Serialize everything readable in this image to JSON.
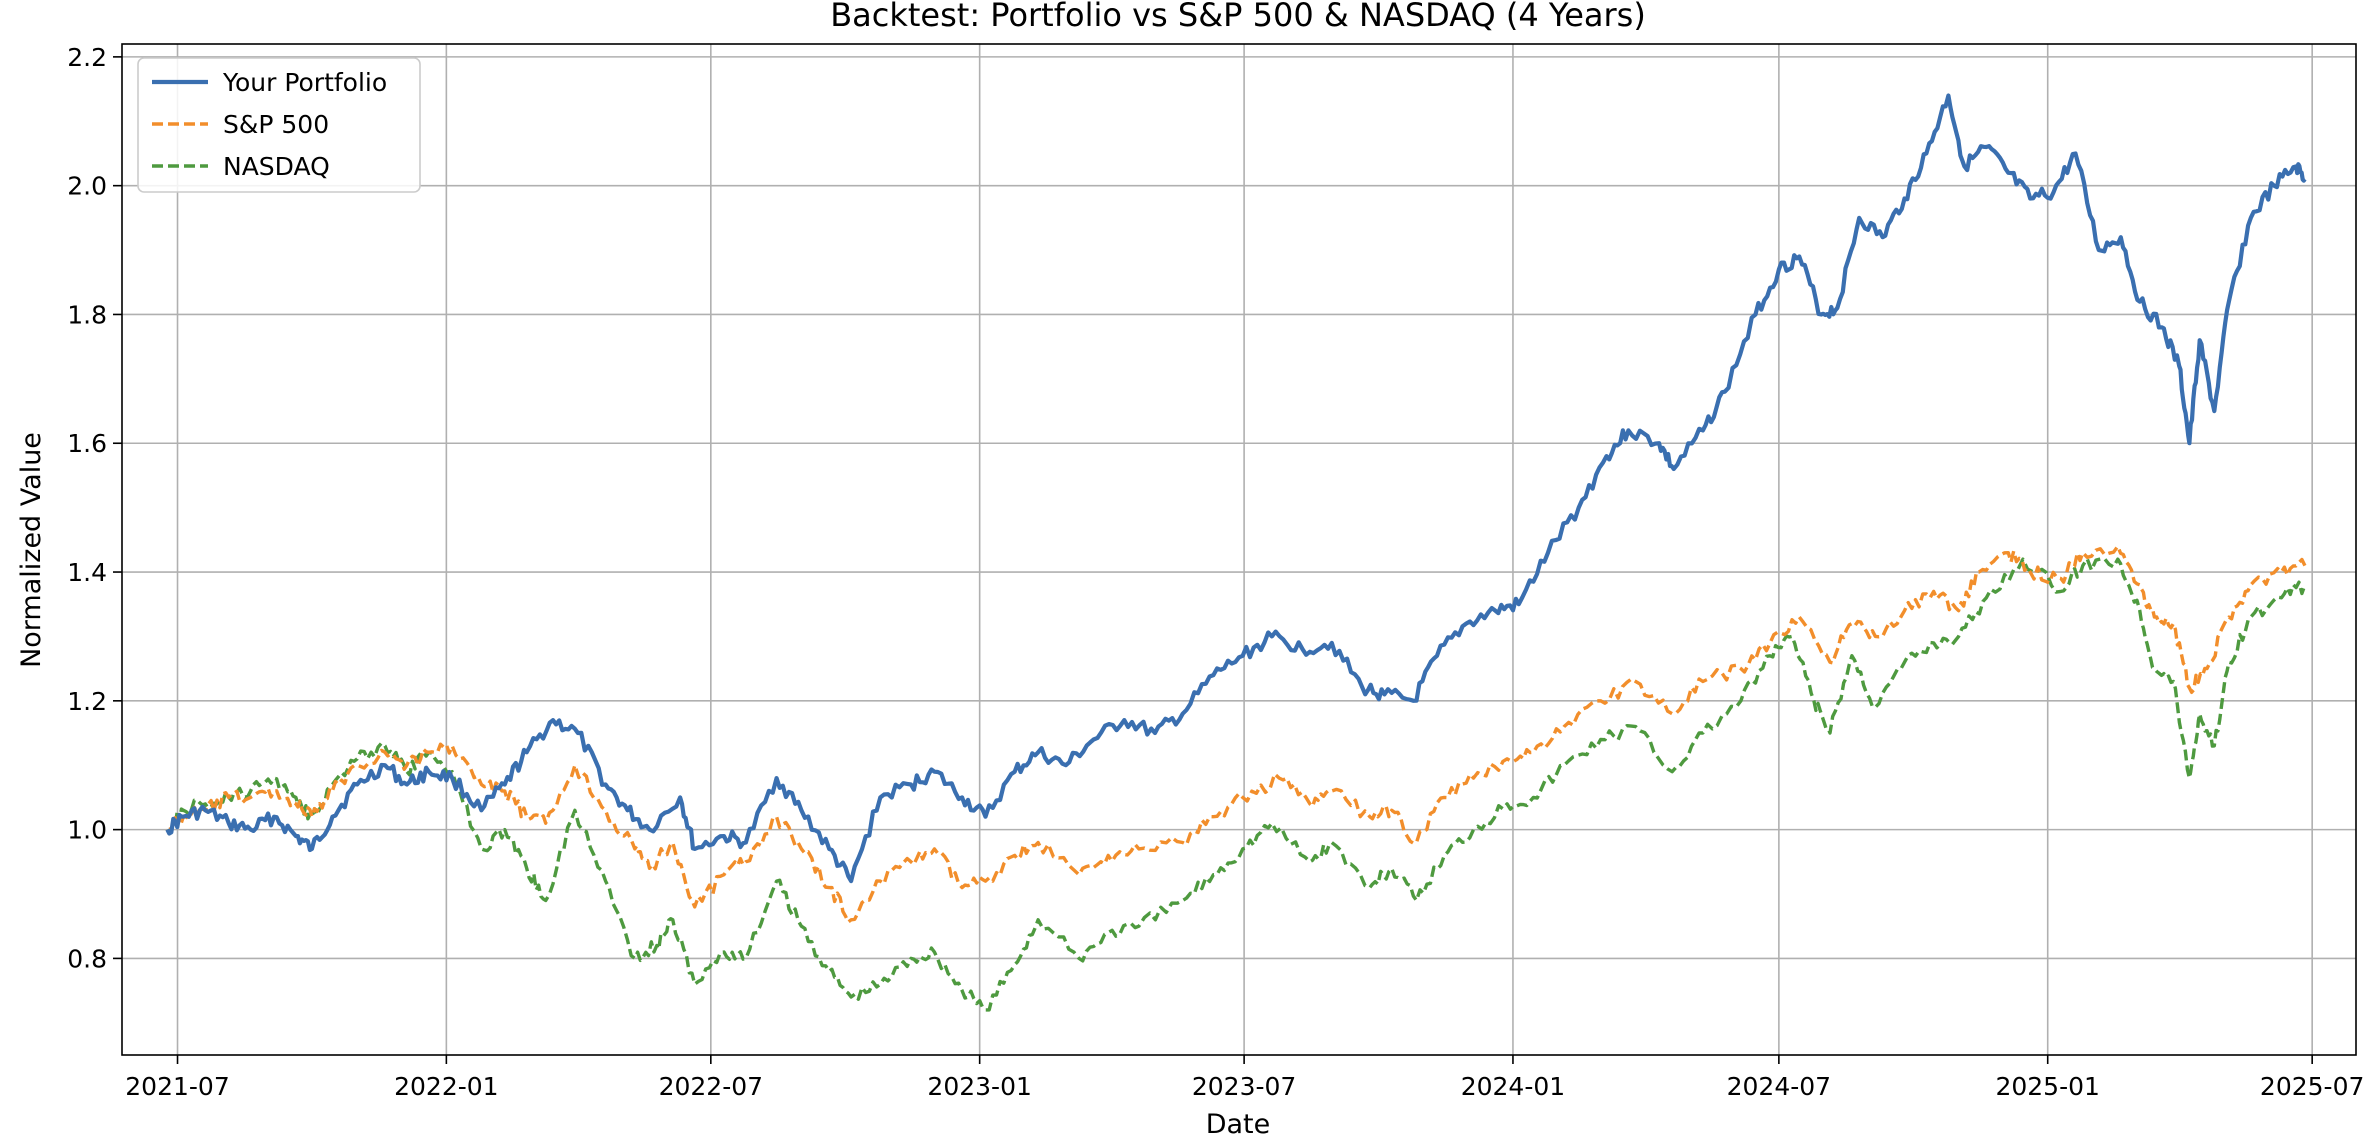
{
  "chart_data": {
    "type": "line",
    "title": "Backtest: Portfolio vs S&P 500 & NASDAQ (4 Years)",
    "xlabel": "Date",
    "ylabel": "Normalized Value",
    "xlim": [
      "2021-05-24",
      "2025-07-31"
    ],
    "ylim": [
      0.65,
      2.22
    ],
    "x_ticks": [
      "2021-07",
      "2022-01",
      "2022-07",
      "2023-01",
      "2023-07",
      "2024-01",
      "2024-07",
      "2025-01",
      "2025-07"
    ],
    "y_ticks": [
      0.8,
      1.0,
      1.2,
      1.4,
      1.6,
      1.8,
      2.0,
      2.2
    ],
    "y_tick_labels": [
      "0.8",
      "1.0",
      "1.2",
      "1.4",
      "1.6",
      "1.8",
      "2.0",
      "2.2"
    ],
    "grid": true,
    "legend_position": "top-left",
    "colors": {
      "portfolio": "#3a6fb0",
      "sp500": "#f28e2b",
      "nasdaq": "#4e9a3f"
    },
    "series": [
      {
        "name": "Your Portfolio",
        "style": "solid",
        "color": "#3a6fb0",
        "points": [
          [
            "2021-06-24",
            1.0
          ],
          [
            "2021-07-05",
            1.02
          ],
          [
            "2021-07-20",
            1.03
          ],
          [
            "2021-08-05",
            1.01
          ],
          [
            "2021-08-20",
            1.0
          ],
          [
            "2021-09-05",
            1.02
          ],
          [
            "2021-09-20",
            0.99
          ],
          [
            "2021-10-01",
            0.97
          ],
          [
            "2021-10-15",
            1.02
          ],
          [
            "2021-11-01",
            1.07
          ],
          [
            "2021-11-20",
            1.1
          ],
          [
            "2021-12-05",
            1.07
          ],
          [
            "2021-12-20",
            1.09
          ],
          [
            "2022-01-05",
            1.08
          ],
          [
            "2022-01-25",
            1.03
          ],
          [
            "2022-02-10",
            1.07
          ],
          [
            "2022-02-25",
            1.12
          ],
          [
            "2022-03-15",
            1.17
          ],
          [
            "2022-04-01",
            1.15
          ],
          [
            "2022-04-20",
            1.07
          ],
          [
            "2022-05-05",
            1.03
          ],
          [
            "2022-05-20",
            1.0
          ],
          [
            "2022-06-10",
            1.05
          ],
          [
            "2022-06-20",
            0.97
          ],
          [
            "2022-07-10",
            0.99
          ],
          [
            "2022-07-25",
            0.98
          ],
          [
            "2022-08-15",
            1.08
          ],
          [
            "2022-09-01",
            1.03
          ],
          [
            "2022-09-20",
            0.97
          ],
          [
            "2022-10-05",
            0.92
          ],
          [
            "2022-10-25",
            1.05
          ],
          [
            "2022-11-15",
            1.07
          ],
          [
            "2022-12-01",
            1.09
          ],
          [
            "2022-12-20",
            1.05
          ],
          [
            "2023-01-05",
            1.02
          ],
          [
            "2023-01-25",
            1.09
          ],
          [
            "2023-02-10",
            1.12
          ],
          [
            "2023-03-01",
            1.1
          ],
          [
            "2023-03-20",
            1.14
          ],
          [
            "2023-04-10",
            1.17
          ],
          [
            "2023-05-01",
            1.15
          ],
          [
            "2023-05-20",
            1.18
          ],
          [
            "2023-06-10",
            1.24
          ],
          [
            "2023-06-30",
            1.27
          ],
          [
            "2023-07-20",
            1.3
          ],
          [
            "2023-08-10",
            1.28
          ],
          [
            "2023-08-30",
            1.29
          ],
          [
            "2023-09-20",
            1.22
          ],
          [
            "2023-10-05",
            1.21
          ],
          [
            "2023-10-25",
            1.2
          ],
          [
            "2023-11-10",
            1.27
          ],
          [
            "2023-11-30",
            1.32
          ],
          [
            "2023-12-20",
            1.34
          ],
          [
            "2024-01-05",
            1.35
          ],
          [
            "2024-01-25",
            1.43
          ],
          [
            "2024-02-15",
            1.5
          ],
          [
            "2024-03-05",
            1.58
          ],
          [
            "2024-03-20",
            1.62
          ],
          [
            "2024-04-10",
            1.6
          ],
          [
            "2024-04-20",
            1.56
          ],
          [
            "2024-05-10",
            1.62
          ],
          [
            "2024-05-25",
            1.68
          ],
          [
            "2024-06-15",
            1.8
          ],
          [
            "2024-07-01",
            1.87
          ],
          [
            "2024-07-15",
            1.89
          ],
          [
            "2024-07-30",
            1.8
          ],
          [
            "2024-08-10",
            1.81
          ],
          [
            "2024-08-25",
            1.95
          ],
          [
            "2024-09-10",
            1.92
          ],
          [
            "2024-09-25",
            1.98
          ],
          [
            "2024-10-10",
            2.05
          ],
          [
            "2024-10-25",
            2.14
          ],
          [
            "2024-11-05",
            2.03
          ],
          [
            "2024-11-20",
            2.06
          ],
          [
            "2024-12-05",
            2.02
          ],
          [
            "2024-12-20",
            1.98
          ],
          [
            "2025-01-05",
            1.99
          ],
          [
            "2025-01-20",
            2.05
          ],
          [
            "2025-02-05",
            1.9
          ],
          [
            "2025-02-20",
            1.92
          ],
          [
            "2025-03-05",
            1.82
          ],
          [
            "2025-03-20",
            1.78
          ],
          [
            "2025-04-01",
            1.72
          ],
          [
            "2025-04-08",
            1.6
          ],
          [
            "2025-04-15",
            1.76
          ],
          [
            "2025-04-25",
            1.65
          ],
          [
            "2025-05-05",
            1.82
          ],
          [
            "2025-05-20",
            1.95
          ],
          [
            "2025-06-05",
            2.0
          ],
          [
            "2025-06-20",
            2.03
          ],
          [
            "2025-06-26",
            2.01
          ]
        ]
      },
      {
        "name": "S&P 500",
        "style": "dashed",
        "color": "#f28e2b",
        "points": [
          [
            "2021-06-24",
            1.0
          ],
          [
            "2021-07-05",
            1.02
          ],
          [
            "2021-07-20",
            1.03
          ],
          [
            "2021-08-05",
            1.05
          ],
          [
            "2021-08-20",
            1.05
          ],
          [
            "2021-09-05",
            1.06
          ],
          [
            "2021-09-20",
            1.04
          ],
          [
            "2021-10-01",
            1.02
          ],
          [
            "2021-10-15",
            1.06
          ],
          [
            "2021-11-01",
            1.1
          ],
          [
            "2021-11-20",
            1.12
          ],
          [
            "2021-12-05",
            1.1
          ],
          [
            "2021-12-20",
            1.12
          ],
          [
            "2022-01-05",
            1.13
          ],
          [
            "2022-01-25",
            1.07
          ],
          [
            "2022-02-10",
            1.06
          ],
          [
            "2022-02-25",
            1.02
          ],
          [
            "2022-03-10",
            1.01
          ],
          [
            "2022-03-30",
            1.1
          ],
          [
            "2022-04-20",
            1.03
          ],
          [
            "2022-05-10",
            0.97
          ],
          [
            "2022-05-20",
            0.94
          ],
          [
            "2022-06-05",
            0.98
          ],
          [
            "2022-06-20",
            0.88
          ],
          [
            "2022-07-10",
            0.93
          ],
          [
            "2022-07-25",
            0.95
          ],
          [
            "2022-08-15",
            1.02
          ],
          [
            "2022-09-01",
            0.97
          ],
          [
            "2022-09-20",
            0.91
          ],
          [
            "2022-10-05",
            0.86
          ],
          [
            "2022-10-25",
            0.92
          ],
          [
            "2022-11-15",
            0.95
          ],
          [
            "2022-12-01",
            0.97
          ],
          [
            "2022-12-20",
            0.91
          ],
          [
            "2023-01-05",
            0.92
          ],
          [
            "2023-01-25",
            0.96
          ],
          [
            "2023-02-10",
            0.98
          ],
          [
            "2023-03-10",
            0.93
          ],
          [
            "2023-03-30",
            0.96
          ],
          [
            "2023-04-20",
            0.97
          ],
          [
            "2023-05-20",
            0.98
          ],
          [
            "2023-06-10",
            1.02
          ],
          [
            "2023-06-30",
            1.05
          ],
          [
            "2023-07-25",
            1.08
          ],
          [
            "2023-08-15",
            1.04
          ],
          [
            "2023-08-30",
            1.06
          ],
          [
            "2023-09-25",
            1.02
          ],
          [
            "2023-10-10",
            1.03
          ],
          [
            "2023-10-27",
            0.98
          ],
          [
            "2023-11-15",
            1.05
          ],
          [
            "2023-12-05",
            1.08
          ],
          [
            "2023-12-28",
            1.11
          ],
          [
            "2024-01-15",
            1.12
          ],
          [
            "2024-02-05",
            1.16
          ],
          [
            "2024-03-01",
            1.2
          ],
          [
            "2024-03-25",
            1.23
          ],
          [
            "2024-04-19",
            1.18
          ],
          [
            "2024-05-10",
            1.23
          ],
          [
            "2024-06-05",
            1.25
          ],
          [
            "2024-06-25",
            1.29
          ],
          [
            "2024-07-15",
            1.33
          ],
          [
            "2024-08-05",
            1.26
          ],
          [
            "2024-08-20",
            1.32
          ],
          [
            "2024-09-05",
            1.3
          ],
          [
            "2024-09-25",
            1.34
          ],
          [
            "2024-10-15",
            1.37
          ],
          [
            "2024-11-01",
            1.34
          ],
          [
            "2024-11-15",
            1.4
          ],
          [
            "2024-12-05",
            1.43
          ],
          [
            "2024-12-20",
            1.4
          ],
          [
            "2025-01-10",
            1.39
          ],
          [
            "2025-01-25",
            1.43
          ],
          [
            "2025-02-18",
            1.44
          ],
          [
            "2025-03-05",
            1.38
          ],
          [
            "2025-03-15",
            1.33
          ],
          [
            "2025-03-28",
            1.32
          ],
          [
            "2025-04-08",
            1.22
          ],
          [
            "2025-04-20",
            1.25
          ],
          [
            "2025-05-05",
            1.33
          ],
          [
            "2025-05-20",
            1.38
          ],
          [
            "2025-06-10",
            1.4
          ],
          [
            "2025-06-26",
            1.41
          ]
        ]
      },
      {
        "name": "NASDAQ",
        "style": "dashed",
        "color": "#4e9a3f",
        "points": [
          [
            "2021-06-24",
            1.0
          ],
          [
            "2021-07-05",
            1.03
          ],
          [
            "2021-07-20",
            1.04
          ],
          [
            "2021-08-05",
            1.05
          ],
          [
            "2021-08-20",
            1.06
          ],
          [
            "2021-09-05",
            1.08
          ],
          [
            "2021-09-20",
            1.05
          ],
          [
            "2021-10-01",
            1.02
          ],
          [
            "2021-10-15",
            1.07
          ],
          [
            "2021-11-01",
            1.11
          ],
          [
            "2021-11-20",
            1.13
          ],
          [
            "2021-12-05",
            1.09
          ],
          [
            "2021-12-20",
            1.12
          ],
          [
            "2022-01-05",
            1.09
          ],
          [
            "2022-01-25",
            0.97
          ],
          [
            "2022-02-10",
            1.0
          ],
          [
            "2022-02-25",
            0.94
          ],
          [
            "2022-03-10",
            0.89
          ],
          [
            "2022-03-30",
            1.03
          ],
          [
            "2022-04-20",
            0.92
          ],
          [
            "2022-05-10",
            0.8
          ],
          [
            "2022-05-25",
            0.82
          ],
          [
            "2022-06-05",
            0.86
          ],
          [
            "2022-06-20",
            0.76
          ],
          [
            "2022-07-10",
            0.81
          ],
          [
            "2022-07-25",
            0.8
          ],
          [
            "2022-08-15",
            0.92
          ],
          [
            "2022-09-01",
            0.85
          ],
          [
            "2022-09-20",
            0.78
          ],
          [
            "2022-10-05",
            0.74
          ],
          [
            "2022-10-25",
            0.76
          ],
          [
            "2022-11-15",
            0.8
          ],
          [
            "2022-12-01",
            0.81
          ],
          [
            "2022-12-20",
            0.75
          ],
          [
            "2023-01-05",
            0.72
          ],
          [
            "2023-01-25",
            0.79
          ],
          [
            "2023-02-10",
            0.86
          ],
          [
            "2023-03-10",
            0.8
          ],
          [
            "2023-03-30",
            0.84
          ],
          [
            "2023-04-20",
            0.85
          ],
          [
            "2023-05-20",
            0.89
          ],
          [
            "2023-06-10",
            0.93
          ],
          [
            "2023-06-30",
            0.97
          ],
          [
            "2023-07-20",
            1.01
          ],
          [
            "2023-08-15",
            0.95
          ],
          [
            "2023-08-30",
            0.98
          ],
          [
            "2023-09-25",
            0.91
          ],
          [
            "2023-10-10",
            0.94
          ],
          [
            "2023-10-27",
            0.89
          ],
          [
            "2023-11-15",
            0.96
          ],
          [
            "2023-12-05",
            1.0
          ],
          [
            "2023-12-28",
            1.04
          ],
          [
            "2024-01-15",
            1.05
          ],
          [
            "2024-02-05",
            1.1
          ],
          [
            "2024-03-01",
            1.14
          ],
          [
            "2024-03-25",
            1.16
          ],
          [
            "2024-04-19",
            1.09
          ],
          [
            "2024-05-10",
            1.15
          ],
          [
            "2024-06-05",
            1.2
          ],
          [
            "2024-06-25",
            1.27
          ],
          [
            "2024-07-10",
            1.3
          ],
          [
            "2024-07-25",
            1.2
          ],
          [
            "2024-08-05",
            1.15
          ],
          [
            "2024-08-20",
            1.27
          ],
          [
            "2024-09-05",
            1.19
          ],
          [
            "2024-09-25",
            1.26
          ],
          [
            "2024-10-15",
            1.29
          ],
          [
            "2024-11-01",
            1.3
          ],
          [
            "2024-11-20",
            1.36
          ],
          [
            "2024-12-15",
            1.42
          ],
          [
            "2025-01-10",
            1.37
          ],
          [
            "2025-01-25",
            1.41
          ],
          [
            "2025-02-18",
            1.42
          ],
          [
            "2025-03-05",
            1.34
          ],
          [
            "2025-03-15",
            1.25
          ],
          [
            "2025-03-28",
            1.23
          ],
          [
            "2025-04-08",
            1.08
          ],
          [
            "2025-04-15",
            1.18
          ],
          [
            "2025-04-25",
            1.13
          ],
          [
            "2025-05-05",
            1.26
          ],
          [
            "2025-05-20",
            1.33
          ],
          [
            "2025-06-10",
            1.36
          ],
          [
            "2025-06-26",
            1.38
          ]
        ]
      }
    ]
  }
}
